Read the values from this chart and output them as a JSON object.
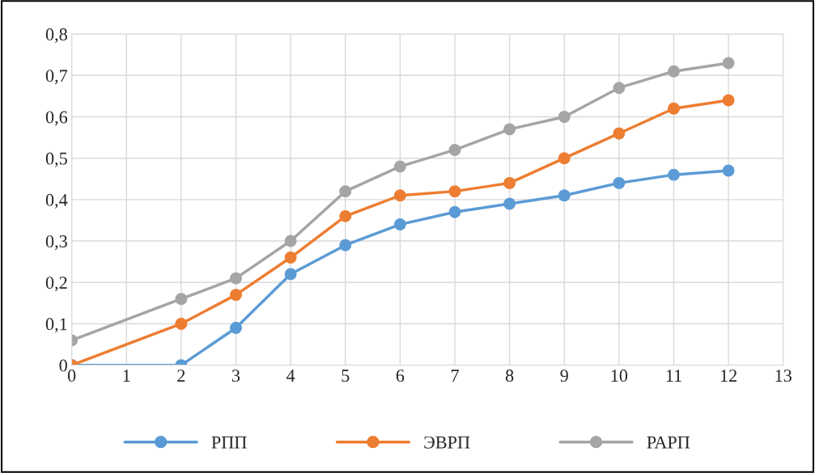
{
  "chart_data": {
    "type": "line",
    "marker": "circle",
    "line_style": "solid",
    "grid": true,
    "legend": "bottom",
    "xlim": [
      0,
      13
    ],
    "xticks": [
      0,
      1,
      2,
      3,
      4,
      5,
      6,
      7,
      8,
      9,
      10,
      11,
      12,
      13
    ],
    "ylim": [
      0,
      0.8
    ],
    "yticks": [
      0,
      {
        "value": 0.1,
        "label": "0,1"
      },
      {
        "value": 0.2,
        "label": "0,2"
      },
      {
        "value": 0.3,
        "label": "0,3"
      },
      {
        "value": 0.4,
        "label": "0,4"
      },
      {
        "value": 0.5,
        "label": "0,5"
      },
      {
        "value": 0.6,
        "label": "0,6"
      },
      {
        "value": 0.7,
        "label": "0,7"
      },
      {
        "value": 0.8,
        "label": "0,8"
      }
    ],
    "x": [
      0,
      2,
      3,
      4,
      5,
      6,
      7,
      8,
      9,
      10,
      11,
      12
    ],
    "series": [
      {
        "name": "РПП",
        "color": "#5b9bd5",
        "values": [
          0,
          0,
          0.09,
          0.22,
          0.29,
          0.34,
          0.37,
          0.39,
          0.41,
          0.44,
          0.46,
          0.47
        ]
      },
      {
        "name": "ЭВРП",
        "color": "#ed7d31",
        "values": [
          0,
          0.1,
          0.17,
          0.26,
          0.36,
          0.41,
          0.42,
          0.44,
          0.5,
          0.56,
          0.62,
          0.64
        ]
      },
      {
        "name": "РАРП",
        "color": "#a5a5a5",
        "values": [
          0.06,
          0.16,
          0.21,
          0.3,
          0.42,
          0.48,
          0.52,
          0.57,
          0.6,
          0.67,
          0.71,
          0.73
        ]
      }
    ]
  }
}
